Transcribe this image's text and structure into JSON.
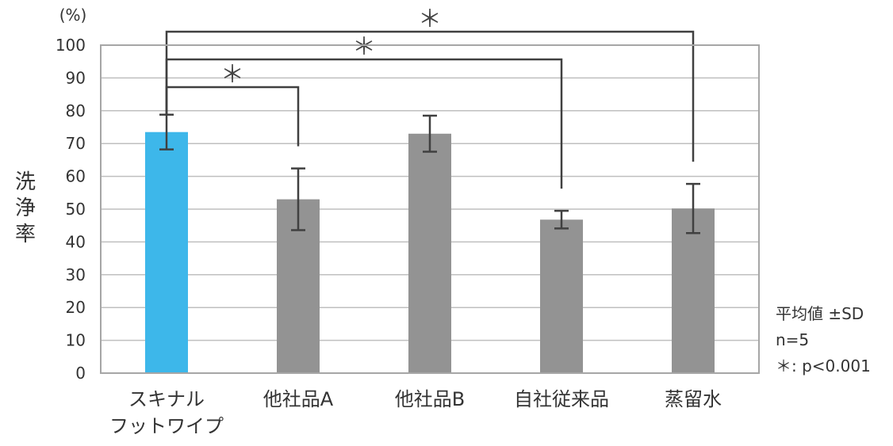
{
  "chart_data": {
    "type": "bar",
    "unit_label": "(%)",
    "ylabel": "洗浄率",
    "ylim": [
      0,
      100
    ],
    "yticks": [
      0,
      10,
      20,
      30,
      40,
      50,
      60,
      70,
      80,
      90,
      100
    ],
    "grid": true,
    "categories": [
      [
        "スキナル",
        "フットワイプ"
      ],
      [
        "他社品A"
      ],
      [
        "他社品B"
      ],
      [
        "自社従来品"
      ],
      [
        "蒸留水"
      ]
    ],
    "values": [
      73.5,
      53,
      73,
      46.8,
      50.2
    ],
    "errors": [
      5.3,
      9.4,
      5.5,
      2.7,
      7.5
    ],
    "colors": [
      "#3db7ea",
      "#939393",
      "#939393",
      "#939393",
      "#939393"
    ],
    "significance": [
      {
        "from": 0,
        "to": 1,
        "label": "＊"
      },
      {
        "from": 0,
        "to": 3,
        "label": "＊"
      },
      {
        "from": 0,
        "to": 4,
        "label": "＊"
      }
    ],
    "notes": [
      "平均値 ±SD",
      "n=5",
      "＊: p<0.001"
    ]
  }
}
